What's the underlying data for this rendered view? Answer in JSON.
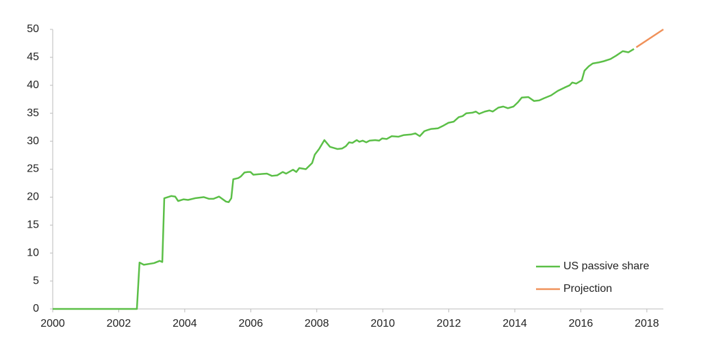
{
  "chart_data": {
    "type": "line",
    "xlim": [
      2000,
      2018.5
    ],
    "xticks": [
      2000,
      2002,
      2004,
      2006,
      2008,
      2010,
      2012,
      2014,
      2016,
      2018
    ],
    "ylim": [
      0,
      50
    ],
    "yticks": [
      0,
      5,
      10,
      15,
      20,
      25,
      30,
      35,
      40,
      45,
      50
    ],
    "grid": false,
    "legend": "lower right",
    "series": [
      {
        "name": "US passive share",
        "color": "#5bbf47",
        "x": [
          2000,
          2002.55,
          2002.63,
          2002.76,
          2003.07,
          2003.24,
          2003.32,
          2003.38,
          2003.59,
          2003.71,
          2003.8,
          2003.96,
          2004.1,
          2004.31,
          2004.58,
          2004.73,
          2004.87,
          2005.04,
          2005.25,
          2005.33,
          2005.41,
          2005.47,
          2005.62,
          2005.7,
          2005.81,
          2005.91,
          2005.99,
          2006.08,
          2006.24,
          2006.49,
          2006.64,
          2006.8,
          2006.97,
          2007.07,
          2007.28,
          2007.38,
          2007.47,
          2007.67,
          2007.86,
          2007.94,
          2008.07,
          2008.23,
          2008.4,
          2008.63,
          2008.77,
          2008.88,
          2008.98,
          2009.08,
          2009.21,
          2009.29,
          2009.39,
          2009.5,
          2009.6,
          2009.77,
          2009.89,
          2009.98,
          2010.12,
          2010.27,
          2010.47,
          2010.64,
          2010.85,
          2010.99,
          2011.12,
          2011.26,
          2011.36,
          2011.47,
          2011.67,
          2011.84,
          2011.99,
          2012.15,
          2012.3,
          2012.42,
          2012.53,
          2012.71,
          2012.82,
          2012.92,
          2013.09,
          2013.23,
          2013.33,
          2013.5,
          2013.65,
          2013.79,
          2013.96,
          2014.1,
          2014.21,
          2014.41,
          2014.58,
          2014.74,
          2014.89,
          2015.1,
          2015.3,
          2015.51,
          2015.66,
          2015.74,
          2015.86,
          2016.03,
          2016.11,
          2016.24,
          2016.36,
          2016.55,
          2016.69,
          2016.9,
          2017.07,
          2017.27,
          2017.44,
          2017.61
        ],
        "values": [
          0,
          0,
          8.3,
          7.9,
          8.2,
          8.6,
          8.4,
          19.8,
          20.2,
          20.1,
          19.3,
          19.6,
          19.5,
          19.8,
          20.0,
          19.7,
          19.7,
          20.1,
          19.2,
          19.1,
          19.8,
          23.2,
          23.4,
          23.7,
          24.4,
          24.5,
          24.5,
          24.0,
          24.1,
          24.2,
          23.8,
          23.9,
          24.5,
          24.2,
          24.9,
          24.5,
          25.2,
          25.0,
          26.1,
          27.6,
          28.6,
          30.2,
          29.0,
          28.6,
          28.7,
          29.1,
          29.8,
          29.7,
          30.2,
          29.9,
          30.1,
          29.8,
          30.1,
          30.2,
          30.1,
          30.5,
          30.4,
          30.9,
          30.8,
          31.1,
          31.2,
          31.4,
          30.9,
          31.8,
          32.0,
          32.2,
          32.3,
          32.8,
          33.3,
          33.5,
          34.3,
          34.5,
          35.0,
          35.1,
          35.3,
          34.9,
          35.3,
          35.5,
          35.3,
          36.0,
          36.2,
          35.9,
          36.2,
          37.0,
          37.8,
          37.9,
          37.2,
          37.3,
          37.7,
          38.2,
          39.0,
          39.6,
          40.0,
          40.5,
          40.3,
          40.9,
          42.6,
          43.4,
          43.9,
          44.1,
          44.3,
          44.7,
          45.3,
          46.1,
          45.9,
          46.5
        ]
      },
      {
        "name": "Projection",
        "color": "#f0915a",
        "x": [
          2017.68,
          2018.5
        ],
        "values": [
          46.8,
          50
        ]
      }
    ]
  }
}
